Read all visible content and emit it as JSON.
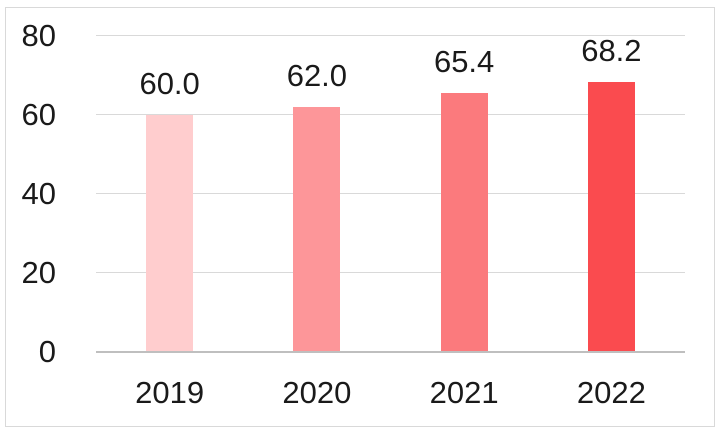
{
  "chart_data": {
    "type": "bar",
    "categories": [
      "2019",
      "2020",
      "2021",
      "2022"
    ],
    "values": [
      60.0,
      62.0,
      65.4,
      68.2
    ],
    "data_labels": [
      "60.0",
      "62.0",
      "65.4",
      "68.2"
    ],
    "bar_colors": [
      "#FFCDCE",
      "#FD9699",
      "#FB7A7D",
      "#FA4B4F"
    ],
    "title": "",
    "xlabel": "",
    "ylabel": "",
    "ylim": [
      0,
      80
    ],
    "yticks": [
      0,
      20,
      40,
      60,
      80
    ],
    "grid": true,
    "legend": false,
    "data_labels_position": "above-bars"
  },
  "colors": {
    "background": "#FFFFFF",
    "border": "#D9D9D9",
    "gridline": "#D9D9D9",
    "axis_line": "#BFBFBF",
    "text": "#1A1A1A"
  }
}
